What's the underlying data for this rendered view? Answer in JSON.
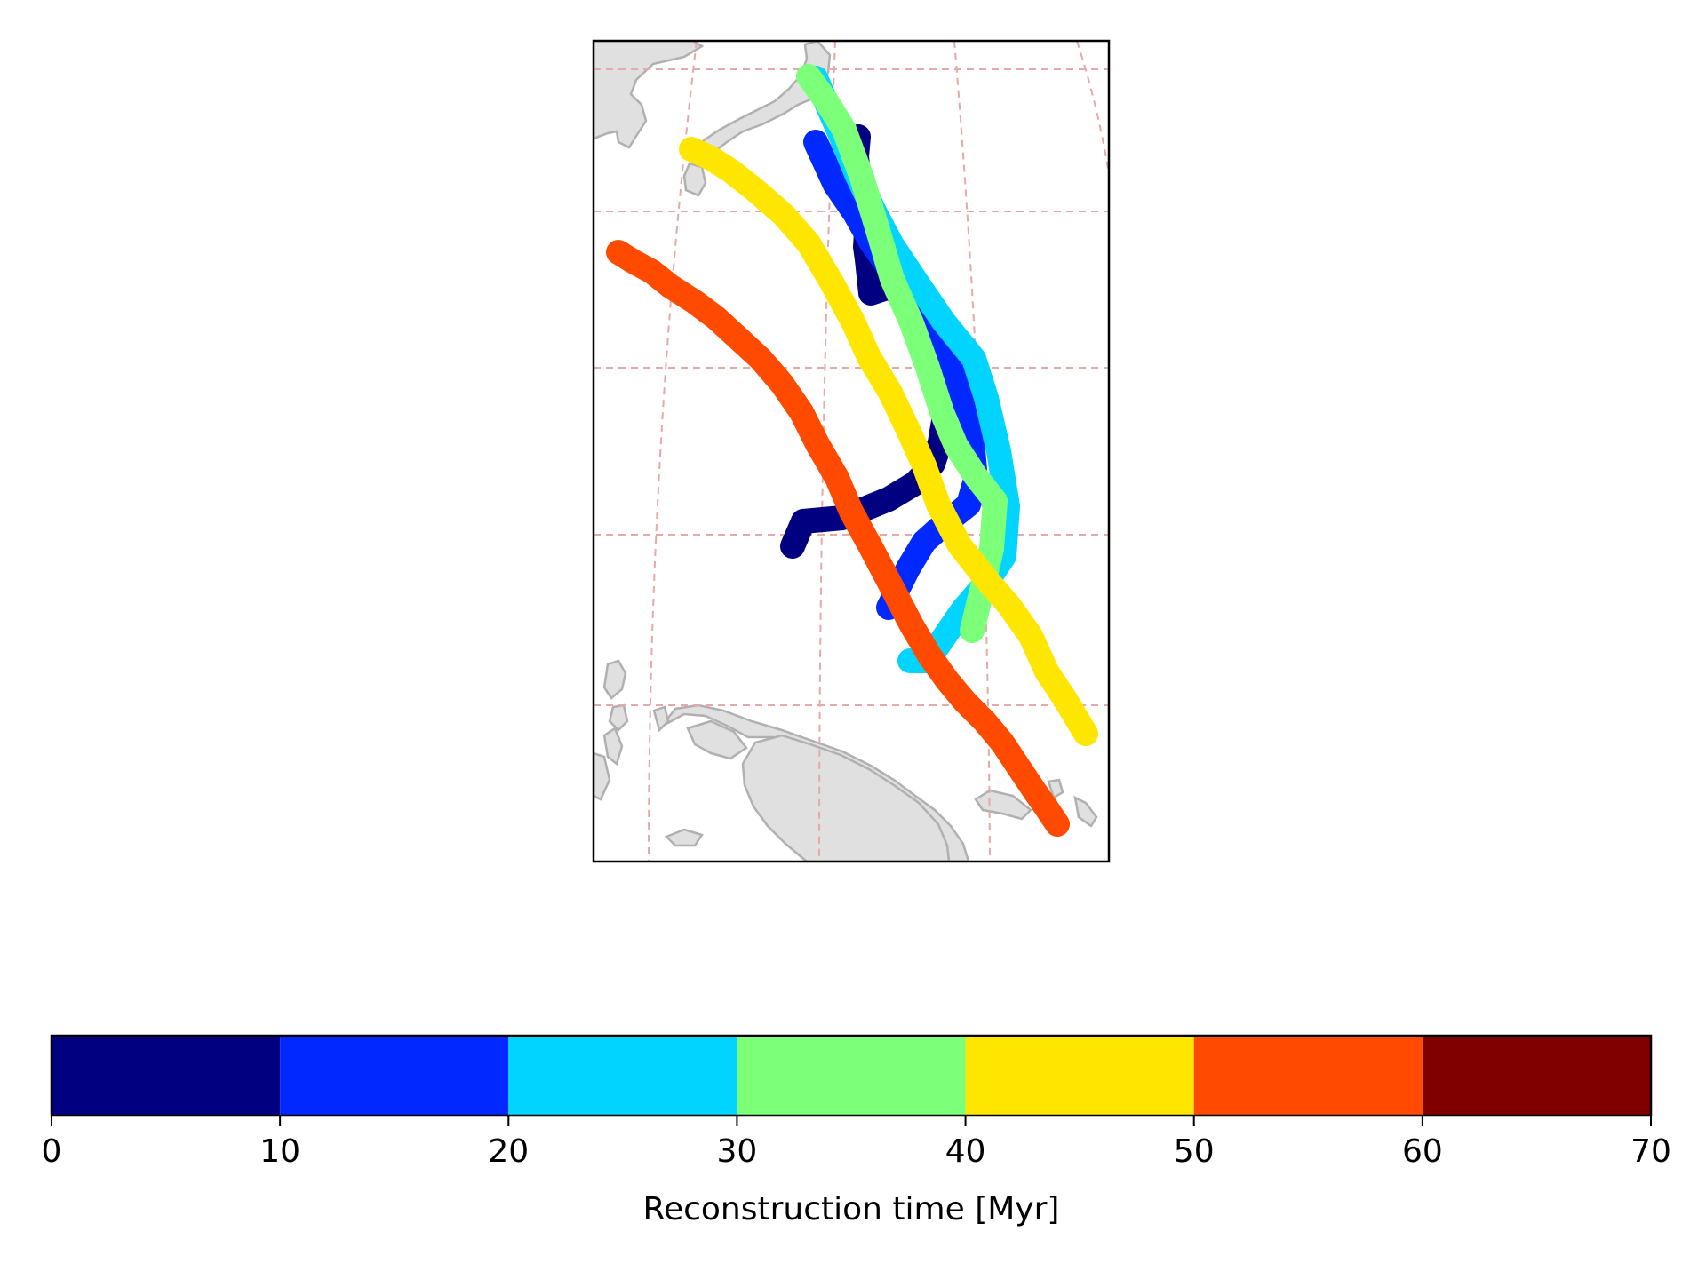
{
  "figure": {
    "colorbar": {
      "label": "Reconstruction time [Myr]",
      "ticks": [
        "0",
        "10",
        "20",
        "30",
        "40",
        "50",
        "60",
        "70"
      ],
      "bins": [
        {
          "range": [
            0,
            10
          ],
          "color": "#000080"
        },
        {
          "range": [
            10,
            20
          ],
          "color": "#0028ff"
        },
        {
          "range": [
            20,
            30
          ],
          "color": "#00d4ff"
        },
        {
          "range": [
            30,
            40
          ],
          "color": "#7cff79"
        },
        {
          "range": [
            40,
            50
          ],
          "color": "#ffe600"
        },
        {
          "range": [
            50,
            60
          ],
          "color": "#ff4a00"
        },
        {
          "range": [
            60,
            70
          ],
          "color": "#800000"
        }
      ]
    },
    "map": {
      "land_color": "#e0e0e0",
      "coast_color": "#b0b0b0",
      "graticule_color": "#e6a8a8",
      "tracks": [
        {
          "bin": "0-10",
          "color": "#000080"
        },
        {
          "bin": "10-20",
          "color": "#0028ff"
        },
        {
          "bin": "20-30",
          "color": "#00d4ff"
        },
        {
          "bin": "30-40",
          "color": "#7cff79"
        },
        {
          "bin": "40-50",
          "color": "#ffe600"
        },
        {
          "bin": "50-60",
          "color": "#ff4a00"
        }
      ]
    }
  }
}
